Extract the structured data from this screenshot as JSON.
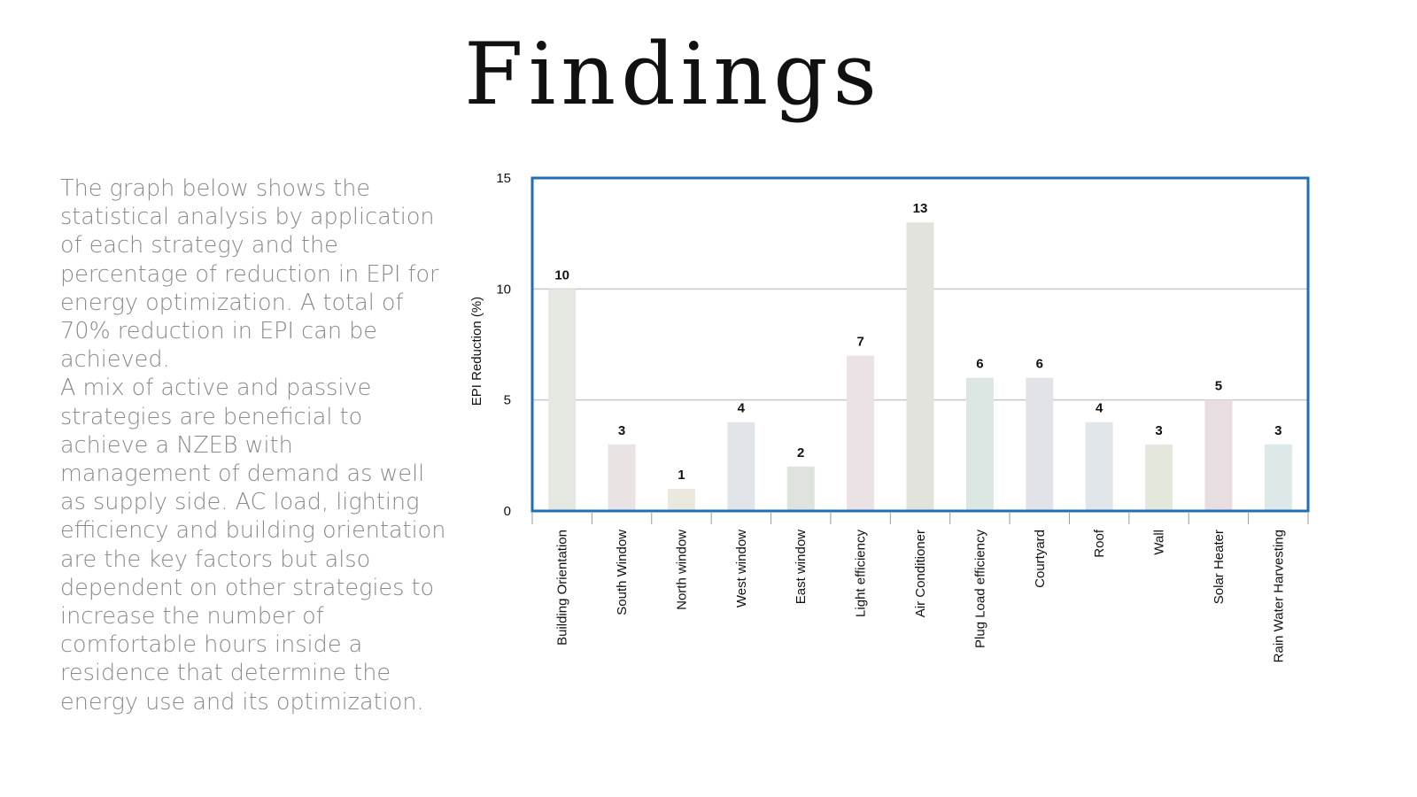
{
  "title": "Findings",
  "body": {
    "paragraphs": [
      "The graph below shows the statistical analysis by application of each strategy and the percentage of reduction in EPI for energy optimization. A total of 70% reduction in EPI can be achieved.",
      "A mix of active and passive strategies are beneficial to achieve a NZEB with management of demand as well as supply side. AC load, lighting efficiency and building orientation are the key factors but also dependent on other strategies to increase the number of comfortable hours inside a residence that determine the energy use and its optimization."
    ]
  },
  "chart_data": {
    "type": "bar",
    "title": "",
    "xlabel": "",
    "ylabel": "EPI Reduction (%)",
    "ylim": [
      0,
      15
    ],
    "yticks": [
      0,
      5,
      10,
      15
    ],
    "grid": true,
    "categories": [
      "Building Orientation",
      "South Window",
      "North window",
      "West window",
      "East window",
      "Light efficiency",
      "Air Conditioner",
      "Plug Load efficiency",
      "Courtyard",
      "Roof",
      "Wall",
      "Solar Heater",
      "Rain Water Harvesting"
    ],
    "values": [
      10,
      3,
      1,
      4,
      2,
      7,
      13,
      6,
      6,
      4,
      3,
      5,
      3
    ],
    "data_labels": [
      "10",
      "3",
      "1",
      "4",
      "2",
      "7",
      "13",
      "6",
      "6",
      "4",
      "3",
      "5",
      "3"
    ],
    "colors": {
      "frame": "#1f6fb5",
      "grid": "#c8c8c8",
      "bars": [
        "#e4e8e0",
        "#eae3e3",
        "#ebe9df",
        "#e1e5e9",
        "#dfe3dd",
        "#ebe2e5",
        "#e3e3dd",
        "#dce6e2",
        "#e2e3e8",
        "#e1e6ea",
        "#e4e7dc",
        "#e8dde0",
        "#dde8e9"
      ]
    }
  }
}
